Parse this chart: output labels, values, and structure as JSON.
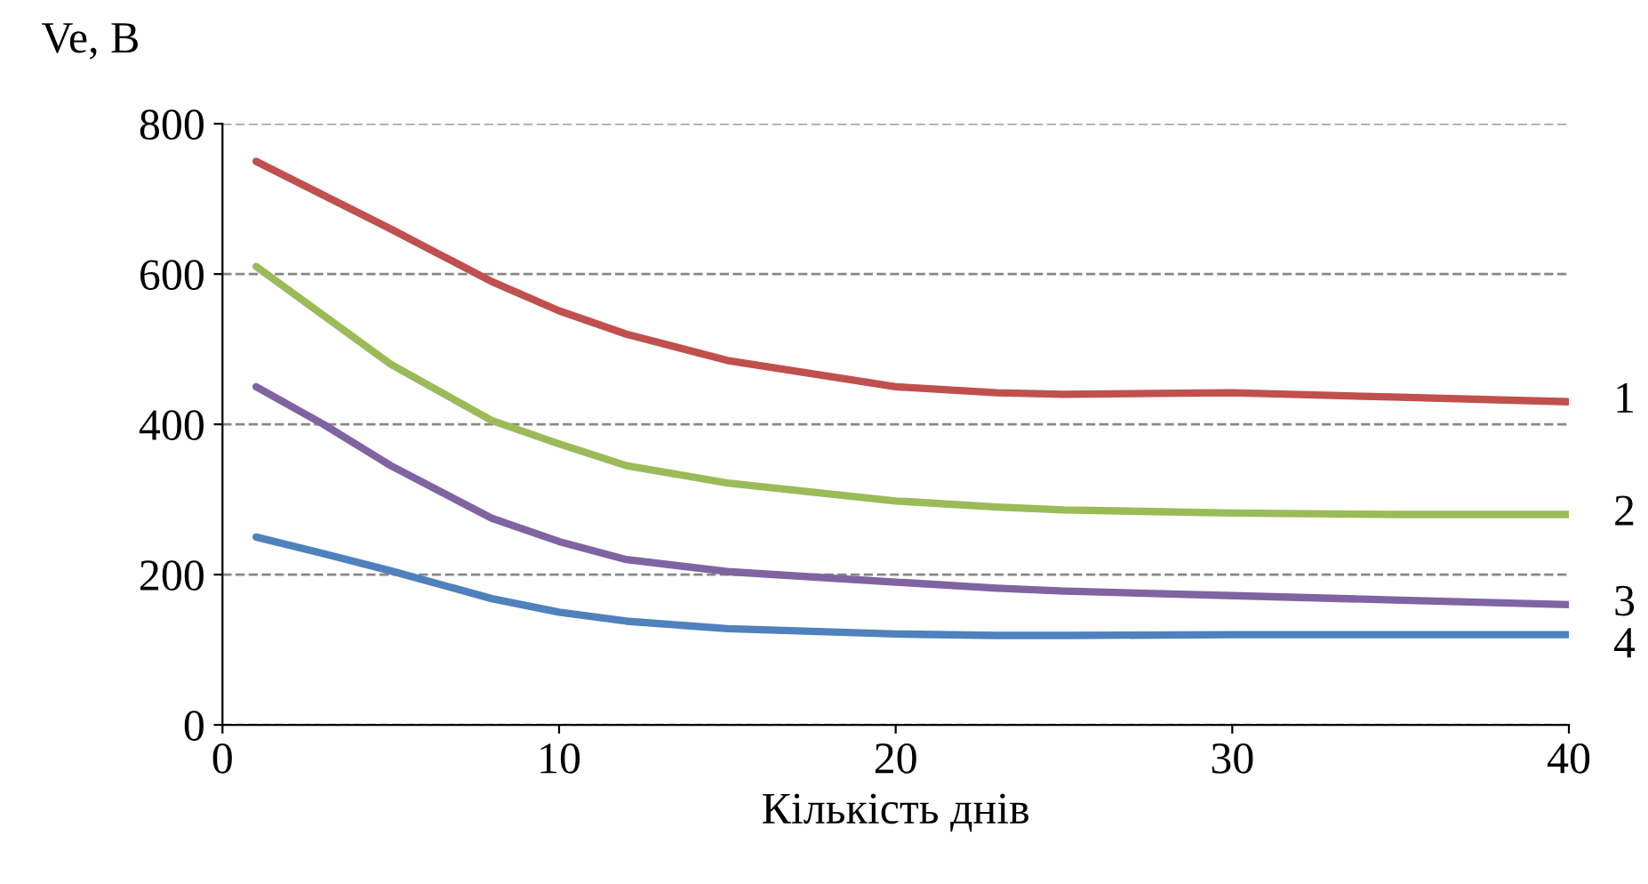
{
  "chart_data": {
    "type": "line",
    "xlabel": "Кількість днів",
    "ylabel": "Ve, В",
    "xlim": [
      0,
      40
    ],
    "ylim": [
      0,
      800
    ],
    "xticks": [
      0,
      10,
      20,
      30,
      40
    ],
    "yticks": [
      0,
      200,
      400,
      600,
      800
    ],
    "grid": "y",
    "line_style": "solid",
    "marker": "none",
    "legend": false,
    "x": [
      1,
      3,
      5,
      8,
      10,
      12,
      15,
      20,
      23,
      25,
      30,
      35,
      40
    ],
    "series": [
      {
        "name": "1",
        "color": "#c0504d",
        "values": [
          750,
          705,
          660,
          590,
          551,
          520,
          485,
          450,
          442,
          440,
          442,
          436,
          430
        ]
      },
      {
        "name": "2",
        "color": "#9bbb59",
        "values": [
          610,
          545,
          480,
          405,
          374,
          345,
          322,
          298,
          290,
          286,
          282,
          280,
          280
        ]
      },
      {
        "name": "3",
        "color": "#8064a2",
        "values": [
          450,
          400,
          345,
          275,
          244,
          220,
          204,
          190,
          182,
          178,
          172,
          166,
          160
        ]
      },
      {
        "name": "4",
        "color": "#4f81bd",
        "values": [
          250,
          228,
          205,
          168,
          150,
          138,
          128,
          121,
          119,
          119,
          120,
          120,
          120
        ]
      }
    ]
  }
}
